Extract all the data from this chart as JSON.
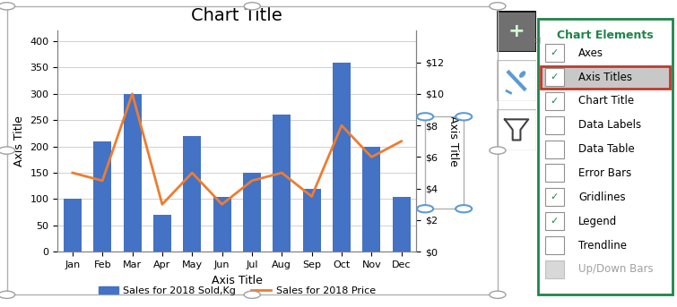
{
  "title": "Chart Title",
  "xlabel": "Axis Title",
  "ylabel_left": "Axis Title",
  "ylabel_right": "Axis Title",
  "categories": [
    "Jan",
    "Feb",
    "Mar",
    "Apr",
    "May",
    "Jun",
    "Jul",
    "Aug",
    "Sep",
    "Oct",
    "Nov",
    "Dec"
  ],
  "bar_values": [
    100,
    210,
    300,
    70,
    220,
    105,
    150,
    260,
    120,
    360,
    200,
    105
  ],
  "line_values": [
    5,
    4.5,
    10,
    3,
    5,
    3,
    4.5,
    5,
    3.5,
    8,
    6,
    7
  ],
  "bar_color": "#4472C4",
  "line_color": "#ED7D31",
  "left_ylim": [
    0,
    420
  ],
  "left_yticks": [
    0,
    50,
    100,
    150,
    200,
    250,
    300,
    350,
    400
  ],
  "right_ylim": [
    0,
    14
  ],
  "right_yticks_labels": [
    "$0",
    "$2",
    "$4",
    "$6",
    "$8",
    "$10",
    "$12"
  ],
  "right_yticks_vals": [
    0,
    2,
    4,
    6,
    8,
    10,
    12
  ],
  "legend_label_bar": "Sales for 2018 Sold,Kg",
  "legend_label_line": "Sales for 2018 Price",
  "chart_elements": [
    "Axes",
    "Axis Titles",
    "Chart Title",
    "Data Labels",
    "Data Table",
    "Error Bars",
    "Gridlines",
    "Legend",
    "Trendline",
    "Up/Down Bars"
  ],
  "checked_items": [
    "Axes",
    "Axis Titles",
    "Chart Title",
    "Gridlines",
    "Legend"
  ],
  "highlighted_item": "Axis Titles",
  "panel_border_color": "#1E8449",
  "panel_bg": "#FFFFFF",
  "highlight_bg": "#C8C8C8",
  "highlight_border": "#C0392B",
  "check_color": "#1E8449",
  "title_color": "#1E8449",
  "disabled_items": [
    "Up/Down Bars"
  ],
  "disabled_color": "#A0A0A0",
  "btn_plus_bg": "#707070",
  "btn_border": "#303030",
  "selection_handle_color": "#A0A0A0",
  "right_axis_label_box_color": "#5B9BD5"
}
